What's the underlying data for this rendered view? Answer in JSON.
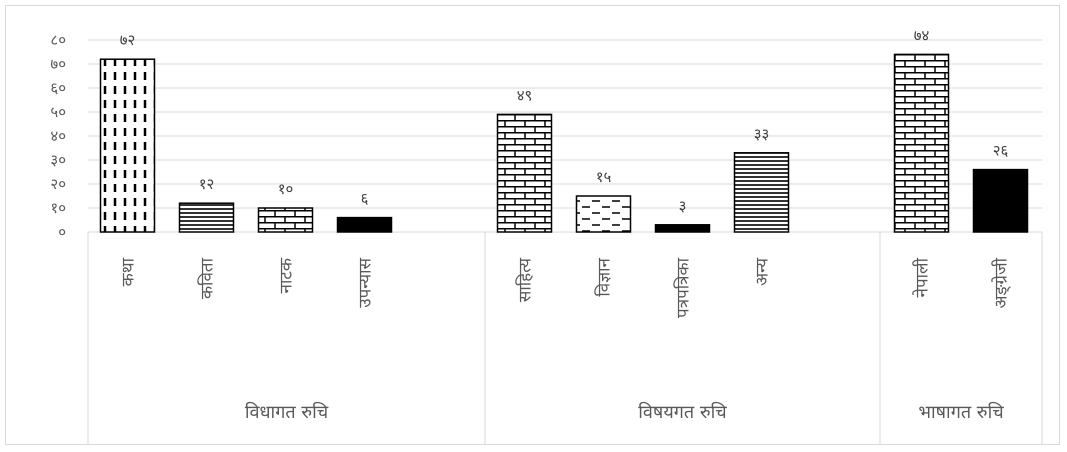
{
  "chart_data": {
    "type": "bar",
    "title": "",
    "xlabel": "",
    "ylabel": "",
    "ylim": [
      0,
      80
    ],
    "y_ticks": [
      "०",
      "१०",
      "२०",
      "३०",
      "४०",
      "५०",
      "६०",
      "७०",
      "८०"
    ],
    "grid": true,
    "groups": [
      {
        "label": "विधागत रुचि",
        "categories": [
          {
            "label": "कथा",
            "value": 72,
            "value_label": "७२",
            "pattern": "dashes-vertical"
          },
          {
            "label": "कविता",
            "value": 12,
            "value_label": "१२",
            "pattern": "horizontal-lines"
          },
          {
            "label": "नाटक",
            "value": 10,
            "value_label": "१०",
            "pattern": "bricks"
          },
          {
            "label": "उपन्यास",
            "value": 6,
            "value_label": "६",
            "pattern": "solid-black"
          }
        ]
      },
      {
        "label": "विषयगत रुचि",
        "categories": [
          {
            "label": "साहित्य",
            "value": 49,
            "value_label": "४९",
            "pattern": "bricks"
          },
          {
            "label": "विज्ञान",
            "value": 15,
            "value_label": "१५",
            "pattern": "dashes-horizontal"
          },
          {
            "label": "पत्रपत्रिका",
            "value": 3,
            "value_label": "३",
            "pattern": "solid-black"
          },
          {
            "label": "अन्य",
            "value": 33,
            "value_label": "३३",
            "pattern": "horizontal-lines"
          }
        ]
      },
      {
        "label": "भाषागत रुचि",
        "categories": [
          {
            "label": "नेपाली",
            "value": 74,
            "value_label": "७४",
            "pattern": "bricks"
          },
          {
            "label": "अङ्ग्रेजी",
            "value": 26,
            "value_label": "२६",
            "pattern": "solid-black"
          }
        ]
      }
    ]
  },
  "colors": {
    "bar_stroke": "#000000",
    "grid": "#d9d9d9",
    "text": "#595959"
  }
}
